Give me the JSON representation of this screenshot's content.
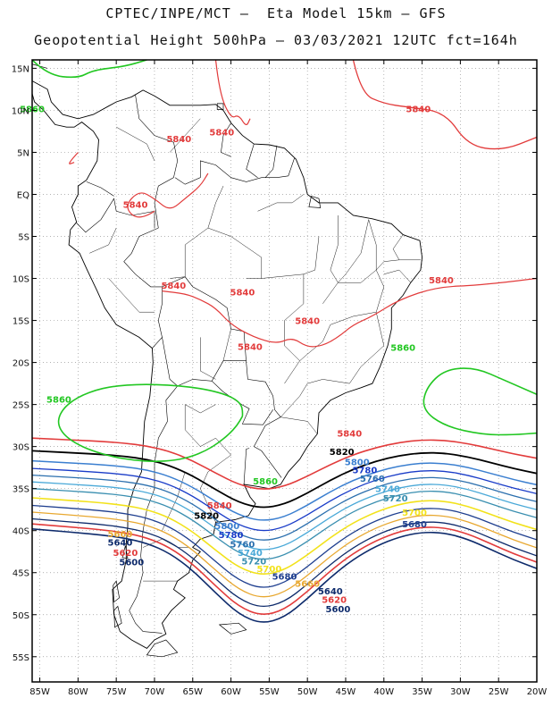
{
  "header": {
    "line1": "CPTEC/INPE/MCT –  Eta Model 15km – GFS",
    "line2": "Geopotential Height 500hPa – 03/03/2021 12UTC fct=164h"
  },
  "axes": {
    "lat_labels": [
      "15N",
      "10N",
      "5N",
      "EQ",
      "5S",
      "10S",
      "15S",
      "20S",
      "25S",
      "30S",
      "35S",
      "40S",
      "45S",
      "50S",
      "55S"
    ],
    "lon_labels": [
      "85W",
      "80W",
      "75W",
      "70W",
      "65W",
      "60W",
      "55W",
      "50W",
      "45W",
      "40W",
      "35W",
      "30W",
      "25W",
      "20W"
    ],
    "lat_range": [
      -58,
      16
    ],
    "lon_range": [
      -86,
      -20
    ],
    "grid": "dotted"
  },
  "colors": {
    "5600": "#0d2a6b",
    "5620": "#e23b3b",
    "5640": "#0d2a6b",
    "5660": "#e8a830",
    "5680": "#1f3f8f",
    "5700": "#f2e21b",
    "5720": "#3a8fb0",
    "5740": "#4aa9d8",
    "5760": "#2b6fae",
    "5780": "#1a3cc8",
    "5800": "#3b7fd0",
    "5820": "#000000",
    "5840": "#e23b3b",
    "5860": "#22c722",
    "coast": "#000000"
  },
  "contours": [
    {
      "value": "5860",
      "labels": [
        "5860",
        "5860",
        "5860",
        "5860"
      ]
    },
    {
      "value": "5840",
      "labels": [
        "5840",
        "5840",
        "5840",
        "5840",
        "5840",
        "5840",
        "5840",
        "5840",
        "5840",
        "5840",
        "5840"
      ]
    },
    {
      "value": "5820",
      "labels": [
        "5820",
        "5820"
      ]
    },
    {
      "value": "5800",
      "labels": [
        "5800",
        "5800"
      ]
    },
    {
      "value": "5780",
      "labels": [
        "5780",
        "5780"
      ]
    },
    {
      "value": "5760",
      "labels": [
        "5760",
        "5760"
      ]
    },
    {
      "value": "5740",
      "labels": [
        "5740",
        "5740"
      ]
    },
    {
      "value": "5720",
      "labels": [
        "5720",
        "5720"
      ]
    },
    {
      "value": "5700",
      "labels": [
        "5700",
        "5700"
      ]
    },
    {
      "value": "5680",
      "labels": [
        "5680",
        "5680"
      ]
    },
    {
      "value": "5660",
      "labels": [
        "5660",
        "5660"
      ]
    },
    {
      "value": "5640",
      "labels": [
        "5640",
        "5640"
      ]
    },
    {
      "value": "5620",
      "labels": [
        "5620",
        "5620"
      ]
    },
    {
      "value": "5600",
      "labels": [
        "5600",
        "5600"
      ]
    }
  ]
}
